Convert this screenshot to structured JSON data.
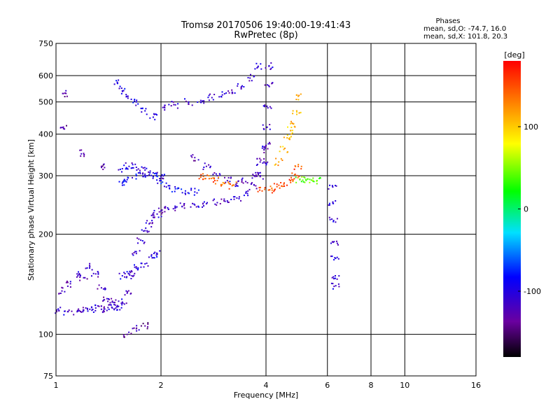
{
  "chart_data": {
    "type": "scatter",
    "title": "Tromsø 20170506 19:40:00-19:41:43",
    "subtitle": "RwPretec (8p)",
    "info": {
      "heading": "Phases",
      "line1": "mean, sd,O: -74.7, 16.0",
      "line2": "mean, sd,X: 101.8, 20.3"
    },
    "xlabel": "Frequency [MHz]",
    "ylabel": "Stationary phase Virtual Height [km]",
    "x_scale": "log",
    "y_scale": "log",
    "xlim": [
      1,
      16
    ],
    "ylim": [
      75,
      750
    ],
    "x_ticks": [
      1,
      2,
      4,
      6,
      8,
      10,
      16
    ],
    "y_ticks": [
      75,
      100,
      200,
      300,
      400,
      500,
      600,
      750
    ],
    "grid": true,
    "colorbar": {
      "label": "[deg]",
      "range": [
        -180,
        180
      ],
      "ticks": [
        100,
        0,
        -100
      ]
    },
    "traces": [
      {
        "phase": -112,
        "points": [
          [
            1.02,
            118
          ],
          [
            1.08,
            117
          ],
          [
            1.15,
            117
          ],
          [
            1.2,
            118
          ],
          [
            1.25,
            119
          ],
          [
            1.3,
            120
          ],
          [
            1.35,
            119
          ],
          [
            1.4,
            118
          ],
          [
            1.45,
            120
          ],
          [
            1.5,
            121
          ],
          [
            1.55,
            125
          ],
          [
            1.6,
            133
          ],
          [
            1.65,
            150
          ],
          [
            1.7,
            175
          ],
          [
            1.75,
            192
          ],
          [
            1.8,
            205
          ],
          [
            1.85,
            215
          ],
          [
            1.9,
            225
          ],
          [
            1.95,
            230
          ],
          [
            2.0,
            235
          ],
          [
            2.1,
            238
          ],
          [
            2.2,
            240
          ],
          [
            2.3,
            242
          ],
          [
            2.5,
            245
          ],
          [
            2.7,
            247
          ],
          [
            2.9,
            249
          ],
          [
            3.1,
            252
          ],
          [
            3.3,
            257
          ],
          [
            3.5,
            266
          ],
          [
            3.7,
            281
          ],
          [
            3.85,
            300
          ],
          [
            3.95,
            330
          ],
          [
            4.0,
            370
          ],
          [
            4.03,
            420
          ],
          [
            4.05,
            480
          ],
          [
            4.07,
            560
          ],
          [
            4.08,
            640
          ]
        ]
      },
      {
        "phase": -90,
        "points": [
          [
            1.55,
            285
          ],
          [
            1.6,
            292
          ],
          [
            1.7,
            300
          ],
          [
            1.8,
            300
          ],
          [
            1.9,
            298
          ],
          [
            2.0,
            290
          ],
          [
            2.1,
            280
          ],
          [
            2.2,
            274
          ],
          [
            2.35,
            270
          ],
          [
            2.5,
            268
          ]
        ]
      },
      {
        "phase": -105,
        "points": [
          [
            1.55,
            315
          ],
          [
            1.62,
            320
          ],
          [
            1.7,
            318
          ],
          [
            1.8,
            312
          ],
          [
            1.9,
            306
          ],
          [
            2.0,
            298
          ]
        ]
      },
      {
        "phase": -118,
        "points": [
          [
            1.04,
            135
          ],
          [
            1.1,
            142
          ],
          [
            1.15,
            152
          ],
          [
            1.2,
            148
          ],
          [
            1.25,
            160
          ],
          [
            1.3,
            152
          ],
          [
            1.35,
            138
          ],
          [
            1.4,
            128
          ],
          [
            1.45,
            125
          ],
          [
            1.5,
            122
          ]
        ]
      },
      {
        "phase": -100,
        "points": [
          [
            1.55,
            150
          ],
          [
            1.62,
            152
          ],
          [
            1.7,
            158
          ],
          [
            1.8,
            163
          ],
          [
            1.9,
            170
          ],
          [
            1.95,
            175
          ]
        ]
      },
      {
        "phase": -100,
        "points": [
          [
            1.5,
            570
          ],
          [
            1.55,
            540
          ],
          [
            1.6,
            520
          ],
          [
            1.7,
            500
          ],
          [
            1.8,
            470
          ],
          [
            1.9,
            450
          ]
        ]
      },
      {
        "phase": -112,
        "points": [
          [
            2.05,
            480
          ],
          [
            2.2,
            490
          ],
          [
            2.4,
            500
          ],
          [
            2.6,
            505
          ],
          [
            2.8,
            515
          ],
          [
            3.0,
            525
          ],
          [
            3.2,
            535
          ],
          [
            3.4,
            555
          ],
          [
            3.6,
            590
          ],
          [
            3.8,
            640
          ]
        ]
      },
      {
        "phase": -120,
        "points": [
          [
            2.5,
            340
          ],
          [
            2.7,
            320
          ],
          [
            2.9,
            300
          ],
          [
            3.1,
            290
          ],
          [
            3.3,
            285
          ],
          [
            3.5,
            288
          ],
          [
            3.7,
            300
          ],
          [
            3.85,
            330
          ],
          [
            3.95,
            360
          ]
        ]
      },
      {
        "phase": 140,
        "points": [
          [
            2.6,
            297
          ],
          [
            2.75,
            294
          ],
          [
            2.9,
            290
          ],
          [
            3.05,
            285
          ],
          [
            3.2,
            280
          ]
        ]
      },
      {
        "phase": 150,
        "points": [
          [
            3.9,
            270
          ],
          [
            4.1,
            272
          ],
          [
            4.3,
            278
          ],
          [
            4.5,
            283
          ],
          [
            4.7,
            290
          ],
          [
            4.85,
            303
          ],
          [
            4.95,
            320
          ]
        ]
      },
      {
        "phase": 110,
        "points": [
          [
            4.35,
            330
          ],
          [
            4.5,
            360
          ],
          [
            4.6,
            390
          ],
          [
            4.7,
            410
          ],
          [
            4.8,
            430
          ],
          [
            4.9,
            470
          ],
          [
            4.95,
            520
          ]
        ]
      },
      {
        "phase": 40,
        "points": [
          [
            5.0,
            292
          ],
          [
            5.2,
            292
          ],
          [
            5.4,
            291
          ],
          [
            5.6,
            290
          ]
        ]
      },
      {
        "phase": -105,
        "points": [
          [
            6.2,
            280
          ],
          [
            6.22,
            250
          ],
          [
            6.25,
            220
          ],
          [
            6.27,
            190
          ],
          [
            6.3,
            170
          ],
          [
            6.32,
            150
          ],
          [
            6.34,
            140
          ]
        ]
      },
      {
        "phase": -130,
        "points": [
          [
            1.05,
            530
          ],
          [
            1.05,
            420
          ],
          [
            1.2,
            350
          ],
          [
            1.35,
            320
          ],
          [
            1.6,
            100
          ],
          [
            1.7,
            104
          ],
          [
            1.8,
            106
          ]
        ]
      }
    ]
  }
}
